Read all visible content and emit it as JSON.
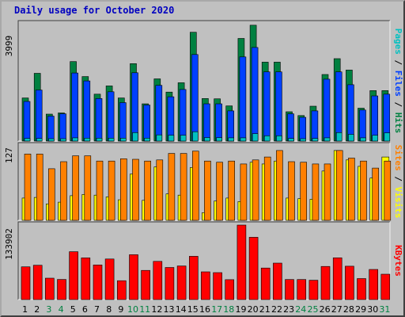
{
  "colors": {
    "pages": "#00c0c0",
    "files": "#0040ff",
    "hits": "#008040",
    "sites": "#ff8000",
    "visits": "#ffff00",
    "kbytes": "#ff0000",
    "background": "#c0c0c0",
    "title": "#0000c0",
    "weekend_day_label": "#008040"
  },
  "chart_data": [
    {
      "type": "bar",
      "title": "Daily usage for October 2020",
      "categories": [
        "1",
        "2",
        "3",
        "4",
        "5",
        "6",
        "7",
        "8",
        "9",
        "10",
        "11",
        "12",
        "13",
        "14",
        "15",
        "16",
        "17",
        "18",
        "19",
        "20",
        "21",
        "22",
        "23",
        "24",
        "25",
        "26",
        "27",
        "28",
        "29",
        "30",
        "31"
      ],
      "weekend_days": [
        "3",
        "4",
        "10",
        "11",
        "17",
        "18",
        "24",
        "25",
        "31"
      ],
      "ylim": [
        0,
        3999
      ],
      "max_label": "3999",
      "legend": [
        "Pages",
        "Files",
        "Hits"
      ],
      "series": [
        {
          "name": "Hits",
          "values": [
            1470,
            2310,
            920,
            960,
            2710,
            2200,
            1600,
            1880,
            1470,
            2640,
            1270,
            2120,
            1670,
            1990,
            3710,
            1450,
            1440,
            1200,
            3500,
            3950,
            2690,
            2690,
            1000,
            870,
            1190,
            2270,
            2810,
            2420,
            1120,
            1720,
            1720
          ]
        },
        {
          "name": "Files",
          "values": [
            1350,
            1740,
            850,
            930,
            2320,
            2050,
            1450,
            1680,
            1310,
            2330,
            1230,
            1900,
            1510,
            1760,
            2950,
            1270,
            1270,
            1030,
            2870,
            3190,
            2360,
            2360,
            930,
            810,
            1030,
            2110,
            2360,
            1920,
            1060,
            1540,
            1600
          ]
        },
        {
          "name": "Pages",
          "values": [
            90,
            90,
            80,
            80,
            110,
            100,
            100,
            100,
            100,
            290,
            100,
            210,
            200,
            200,
            320,
            120,
            120,
            110,
            110,
            250,
            180,
            180,
            90,
            80,
            90,
            110,
            290,
            230,
            110,
            200,
            280
          ]
        }
      ]
    },
    {
      "type": "bar",
      "categories": [
        "1",
        "2",
        "3",
        "4",
        "5",
        "6",
        "7",
        "8",
        "9",
        "10",
        "11",
        "12",
        "13",
        "14",
        "15",
        "16",
        "17",
        "18",
        "19",
        "20",
        "21",
        "22",
        "23",
        "24",
        "25",
        "26",
        "27",
        "28",
        "29",
        "30",
        "31"
      ],
      "ylim": [
        0,
        127
      ],
      "max_label": "127",
      "legend": [
        "Sites",
        "Visits"
      ],
      "series": [
        {
          "name": "Sites",
          "values": [
            113,
            113,
            88,
            100,
            110,
            110,
            101,
            101,
            105,
            104,
            101,
            103,
            114,
            114,
            118,
            101,
            99,
            101,
            96,
            103,
            108,
            119,
            100,
            99,
            96,
            96,
            119,
            106,
            101,
            89,
            101
          ]
        },
        {
          "name": "Visits",
          "values": [
            38,
            39,
            28,
            31,
            42,
            44,
            43,
            40,
            35,
            79,
            34,
            91,
            45,
            43,
            90,
            13,
            33,
            38,
            32,
            99,
            96,
            101,
            38,
            37,
            36,
            84,
            119,
            103,
            92,
            72,
            108
          ]
        }
      ]
    },
    {
      "type": "bar",
      "categories": [
        "1",
        "2",
        "3",
        "4",
        "5",
        "6",
        "7",
        "8",
        "9",
        "10",
        "11",
        "12",
        "13",
        "14",
        "15",
        "16",
        "17",
        "18",
        "19",
        "20",
        "21",
        "22",
        "23",
        "24",
        "25",
        "26",
        "27",
        "28",
        "29",
        "30",
        "31"
      ],
      "ylim": [
        0,
        133902
      ],
      "max_label": "133902",
      "legend": [
        "KBytes"
      ],
      "series": [
        {
          "name": "KBytes",
          "values": [
            58900,
            61700,
            38500,
            36200,
            86000,
            74900,
            62300,
            72900,
            33900,
            80600,
            52400,
            68700,
            57700,
            60400,
            77800,
            49900,
            48400,
            35800,
            133900,
            112000,
            56700,
            65500,
            36000,
            36000,
            34800,
            59600,
            75100,
            60000,
            37700,
            54100,
            45600
          ]
        }
      ]
    }
  ]
}
